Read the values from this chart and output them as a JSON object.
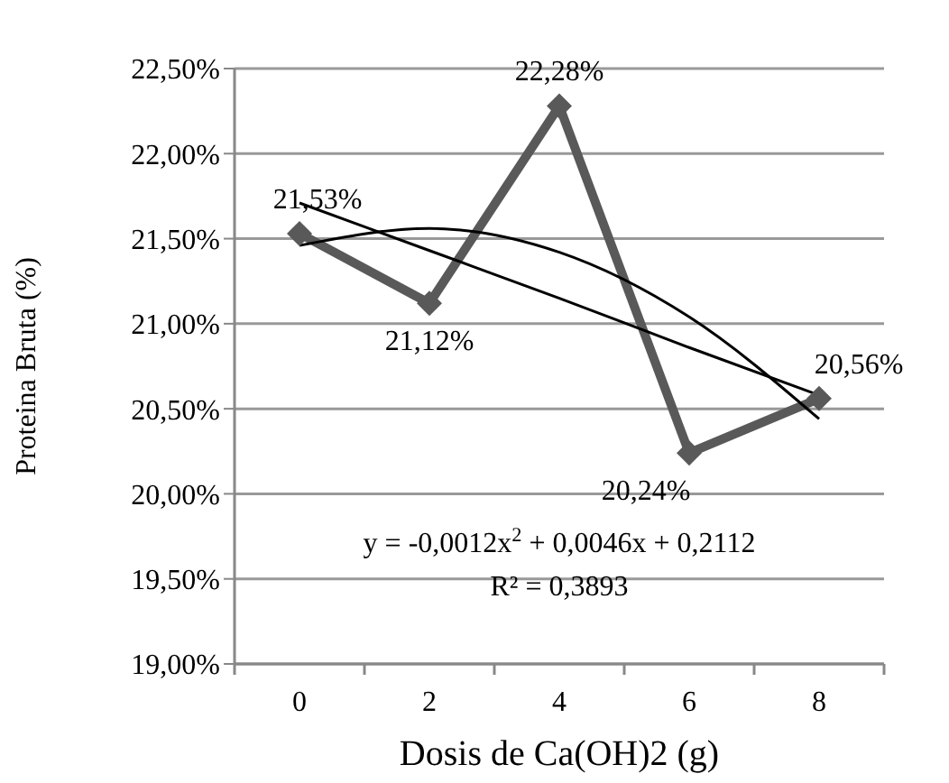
{
  "chart_data": {
    "type": "line",
    "xlabel": "Dosis de Ca(OH)2 (g)",
    "ylabel": "Proteina Bruta (%)",
    "categories": [
      "0",
      "2",
      "4",
      "6",
      "8"
    ],
    "series": [
      {
        "color": "#595959",
        "values": [
          21.53,
          21.12,
          22.28,
          20.24,
          20.56
        ],
        "marker": "diamond",
        "value_labels": [
          "21,53%",
          "21,12%",
          "22,28%",
          "20,24%",
          "20,56%"
        ]
      },
      {
        "color": "#000000",
        "values": [
          21.46,
          21.56,
          21.42,
          21.04,
          20.44
        ],
        "marker": "none"
      },
      {
        "color": "#000000",
        "values": [
          21.71,
          21.43,
          21.15,
          20.86,
          20.58
        ],
        "marker": "none"
      }
    ],
    "ylim": [
      19,
      22.5
    ],
    "yticks": [
      {
        "value": 19,
        "label": "19,00%"
      },
      {
        "value": 19.5,
        "label": "19,50%"
      },
      {
        "value": 20,
        "label": "20,00%"
      },
      {
        "value": 20.5,
        "label": "20,50%"
      },
      {
        "value": 21,
        "label": "21,00%"
      },
      {
        "value": 21.5,
        "label": "21,50%"
      },
      {
        "value": 22,
        "label": "22,00%"
      },
      {
        "value": 22.5,
        "label": "22,50%"
      }
    ],
    "grid": "y",
    "legend": false,
    "annotations": [
      "y = -0,0012x$^{2}$ + 0,0046x + 0,2112",
      "R² = 0,3893"
    ]
  }
}
